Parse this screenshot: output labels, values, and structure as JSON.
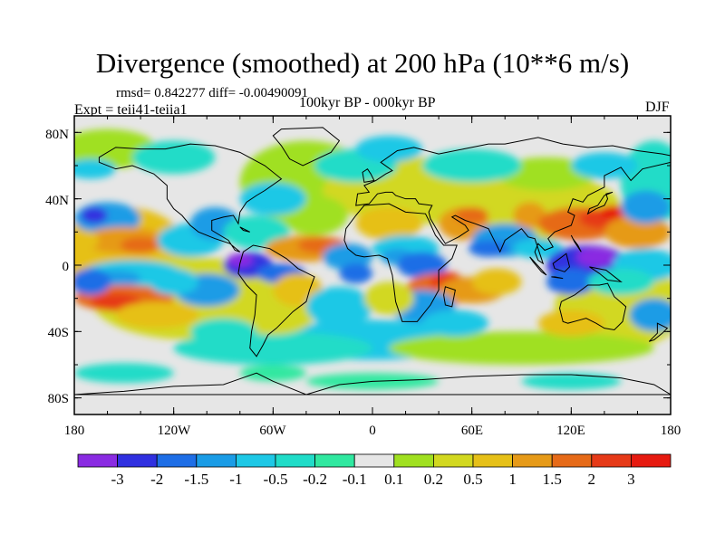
{
  "title": "Divergence (smoothed) at 200 hPa (10**6 m/s)",
  "stats": "rmsd= 0.842277 diff= -0.00490091",
  "experiment": "Expt = teii41-teiia1",
  "period": "100kyr BP - 000kyr BP",
  "season": "DJF",
  "lat_labels": [
    "80N",
    "40N",
    "0",
    "40S",
    "80S"
  ],
  "lon_labels": [
    "180",
    "120W",
    "60W",
    "0",
    "60E",
    "120E",
    "180"
  ],
  "colorbar": {
    "labels": [
      "-3",
      "-2",
      "-1.5",
      "-1",
      "-0.5",
      "-0.2",
      "-0.1",
      "0.1",
      "0.2",
      "0.5",
      "1",
      "1.5",
      "2",
      "3"
    ],
    "colors": [
      "#8a2be2",
      "#3030e0",
      "#1e6ee6",
      "#1a9ce6",
      "#1ec8e6",
      "#20dcc8",
      "#30e8a0",
      "#e6e6e6",
      "#a0e020",
      "#d2d820",
      "#e6c018",
      "#e69a18",
      "#e66a18",
      "#e63a18",
      "#e61a10"
    ]
  },
  "colors": {
    "neutral": "#e6e6e6",
    "coast": "#000000"
  }
}
